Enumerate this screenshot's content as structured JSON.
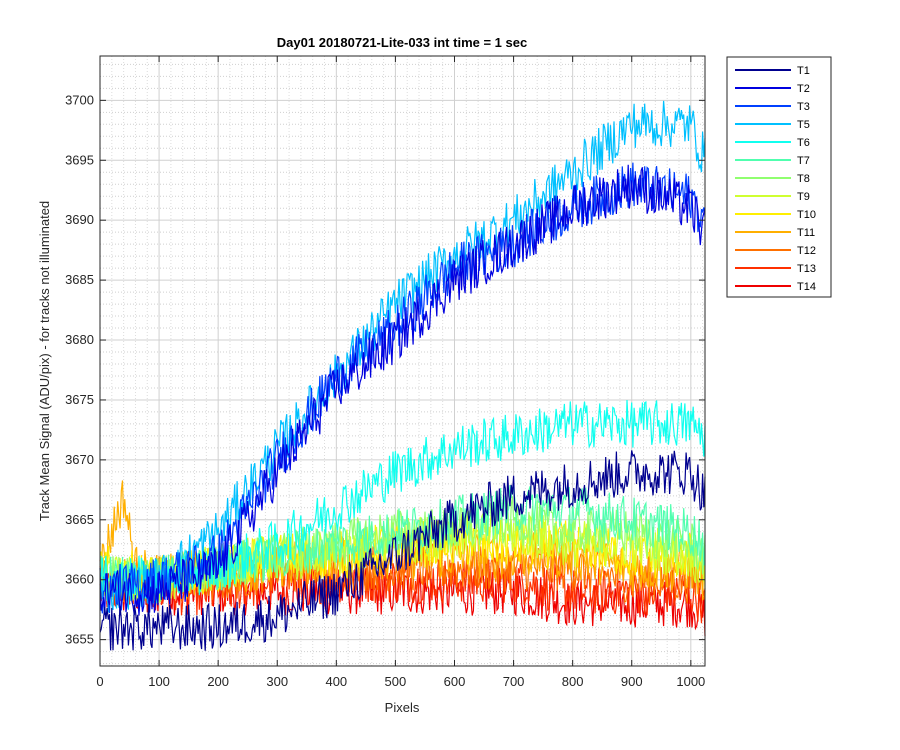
{
  "chart_data": {
    "type": "line",
    "title": "Day01 20180721-Lite-033 int time = 1 sec",
    "xlabel": "Pixels",
    "ylabel": "Track Mean Signal (ADU/pix) - for tracks not illuminated",
    "xlim": [
      0,
      1024
    ],
    "ylim": [
      3652.8,
      3703.7
    ],
    "xticks": [
      0,
      100,
      200,
      300,
      400,
      500,
      600,
      700,
      800,
      900,
      1000
    ],
    "yticks": [
      3655,
      3660,
      3665,
      3670,
      3675,
      3680,
      3685,
      3690,
      3695,
      3700
    ],
    "grid": true,
    "minor_grid": true,
    "legend_position": "outside-top-right",
    "series": [
      {
        "name": "T1",
        "color": "#00008f",
        "x": [
          0,
          100,
          200,
          300,
          400,
          500,
          600,
          700,
          800,
          900,
          1000,
          1024
        ],
        "y": [
          3656,
          3656,
          3656,
          3657,
          3659,
          3662,
          3665,
          3667,
          3668,
          3669,
          3669,
          3667
        ]
      },
      {
        "name": "T2",
        "color": "#0000df",
        "x": [
          0,
          100,
          200,
          300,
          400,
          500,
          600,
          700,
          800,
          900,
          1000,
          1024
        ],
        "y": [
          3659,
          3659,
          3661,
          3669,
          3676,
          3680,
          3685,
          3688,
          3691,
          3693,
          3691,
          3689
        ]
      },
      {
        "name": "T3",
        "color": "#0040ff",
        "x": [
          0,
          100,
          200,
          300,
          400,
          500,
          600,
          700,
          800,
          900,
          1000,
          1024
        ],
        "y": [
          3659,
          3660,
          3662,
          3670,
          3677,
          3681,
          3686,
          3688,
          3691,
          3693,
          3692,
          3690
        ]
      },
      {
        "name": "T5",
        "color": "#00c0ff",
        "x": [
          0,
          100,
          200,
          300,
          400,
          500,
          600,
          700,
          800,
          900,
          1000,
          1024
        ],
        "y": [
          3659,
          3660,
          3664,
          3671,
          3677,
          3683,
          3687,
          3690,
          3694,
          3698,
          3698,
          3695
        ]
      },
      {
        "name": "T6",
        "color": "#10ffef",
        "x": [
          0,
          100,
          200,
          300,
          400,
          500,
          600,
          700,
          800,
          900,
          1000,
          1024
        ],
        "y": [
          3660,
          3660,
          3661,
          3663,
          3666,
          3669,
          3671,
          3672,
          3673,
          3673,
          3673,
          3672
        ]
      },
      {
        "name": "T7",
        "color": "#50ffaf",
        "x": [
          0,
          100,
          200,
          300,
          400,
          500,
          600,
          700,
          800,
          900,
          1000,
          1024
        ],
        "y": [
          3660,
          3660,
          3661,
          3662,
          3663,
          3664,
          3665,
          3666,
          3666,
          3665,
          3664,
          3663
        ]
      },
      {
        "name": "T8",
        "color": "#90ff6f",
        "x": [
          0,
          100,
          200,
          300,
          400,
          500,
          600,
          700,
          800,
          900,
          1000,
          1024
        ],
        "y": [
          3660,
          3660,
          3661,
          3662,
          3663,
          3664,
          3664,
          3665,
          3664,
          3664,
          3663,
          3662
        ]
      },
      {
        "name": "T9",
        "color": "#cfff30",
        "x": [
          0,
          100,
          200,
          300,
          400,
          500,
          600,
          700,
          800,
          900,
          1000,
          1024
        ],
        "y": [
          3660,
          3660,
          3661,
          3662,
          3662,
          3663,
          3664,
          3664,
          3663,
          3663,
          3662,
          3661
        ]
      },
      {
        "name": "T10",
        "color": "#ffef00",
        "x": [
          0,
          100,
          200,
          300,
          400,
          500,
          600,
          700,
          800,
          900,
          1000,
          1024
        ],
        "y": [
          3661,
          3660,
          3661,
          3662,
          3662,
          3663,
          3663,
          3663,
          3663,
          3662,
          3662,
          3661
        ]
      },
      {
        "name": "T11",
        "color": "#ffaf00",
        "x": [
          0,
          40,
          60,
          100,
          200,
          300,
          400,
          500,
          600,
          700,
          800,
          900,
          1000,
          1024
        ],
        "y": [
          3661,
          3667,
          3661,
          3660,
          3661,
          3661,
          3662,
          3662,
          3662,
          3662,
          3662,
          3661,
          3661,
          3660
        ]
      },
      {
        "name": "T12",
        "color": "#ff7000",
        "x": [
          0,
          100,
          200,
          300,
          400,
          500,
          600,
          700,
          800,
          900,
          1000,
          1024
        ],
        "y": [
          3660,
          3660,
          3660,
          3661,
          3661,
          3661,
          3661,
          3661,
          3661,
          3660,
          3660,
          3660
        ]
      },
      {
        "name": "T13",
        "color": "#ff3000",
        "x": [
          0,
          100,
          200,
          300,
          400,
          500,
          600,
          700,
          800,
          900,
          1000,
          1024
        ],
        "y": [
          3660,
          3659,
          3659,
          3660,
          3660,
          3660,
          3660,
          3660,
          3659,
          3659,
          3659,
          3658
        ]
      },
      {
        "name": "T14",
        "color": "#ef0000",
        "x": [
          0,
          100,
          200,
          300,
          400,
          500,
          600,
          700,
          800,
          900,
          1000,
          1024
        ],
        "y": [
          3659,
          3659,
          3659,
          3659,
          3659,
          3659,
          3659,
          3659,
          3658,
          3658,
          3658,
          3657
        ]
      }
    ]
  }
}
